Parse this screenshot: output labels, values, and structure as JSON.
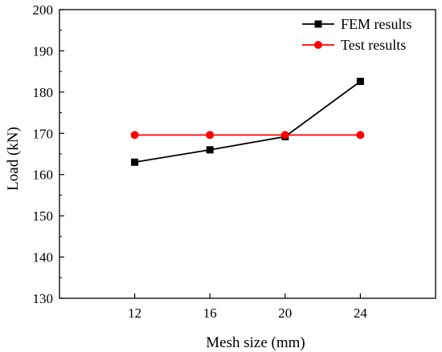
{
  "chart_data": {
    "type": "line",
    "xlabel": "Mesh size (mm)",
    "ylabel": "Load (kN)",
    "x": [
      12,
      16,
      20,
      24
    ],
    "xlim": [
      8,
      28
    ],
    "ylim": [
      130,
      200
    ],
    "y_ticks": [
      130,
      140,
      150,
      160,
      170,
      180,
      190,
      200
    ],
    "x_ticks": [
      12,
      16,
      20,
      24
    ],
    "grid": false,
    "legend_position": "top-right",
    "series": [
      {
        "name": "FEM results",
        "values": [
          163.0,
          166.0,
          169.2,
          182.6
        ],
        "color": "#000000",
        "marker": "square"
      },
      {
        "name": "Test results",
        "values": [
          169.6,
          169.6,
          169.6,
          169.6
        ],
        "color": "#ff0000",
        "marker": "circle"
      }
    ]
  }
}
